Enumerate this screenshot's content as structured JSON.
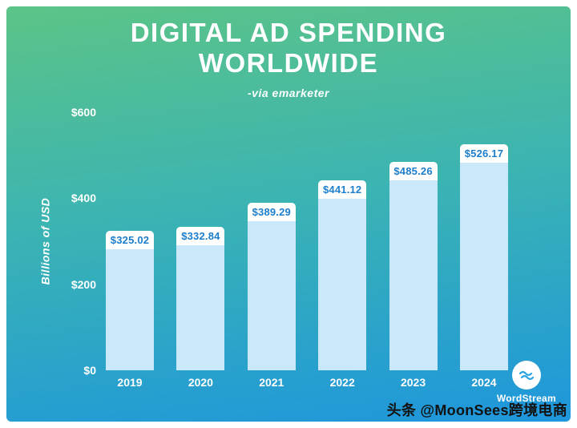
{
  "header": {
    "title_line1": "DIGITAL AD SPENDING",
    "title_line2": "WORLDWIDE",
    "subtitle": "-via emarketer"
  },
  "chart_data": {
    "type": "bar",
    "title": "DIGITAL AD SPENDING WORLDWIDE",
    "subtitle": "-via emarketer",
    "categories": [
      "2019",
      "2020",
      "2021",
      "2022",
      "2023",
      "2024"
    ],
    "values": [
      325.02,
      332.84,
      389.29,
      441.12,
      485.26,
      526.17
    ],
    "value_labels": [
      "$325.02",
      "$332.84",
      "$389.29",
      "$441.12",
      "$485.26",
      "$526.17"
    ],
    "ylabel": "Billions of USD",
    "y_ticks": [
      "$600",
      "$400",
      "$200",
      "$0"
    ],
    "ylim": [
      0,
      600
    ],
    "grid": false,
    "legend": "none",
    "bar_color": "#c9e8fa",
    "value_label_bg": "#ffffff",
    "value_label_text_color": "#1d7ecb",
    "axis_text_color": "#ffffff"
  },
  "branding": {
    "name": "WordStream",
    "icon": "wave-icon",
    "icon_color": "#29a3e0"
  },
  "watermark": {
    "text": "头条 @MoonSees跨境电商"
  },
  "colors": {
    "gradient_top": "#5cc487",
    "gradient_mid": "#3ab3b4",
    "gradient_bottom": "#1e96dc",
    "page_border": "#ffffff"
  }
}
